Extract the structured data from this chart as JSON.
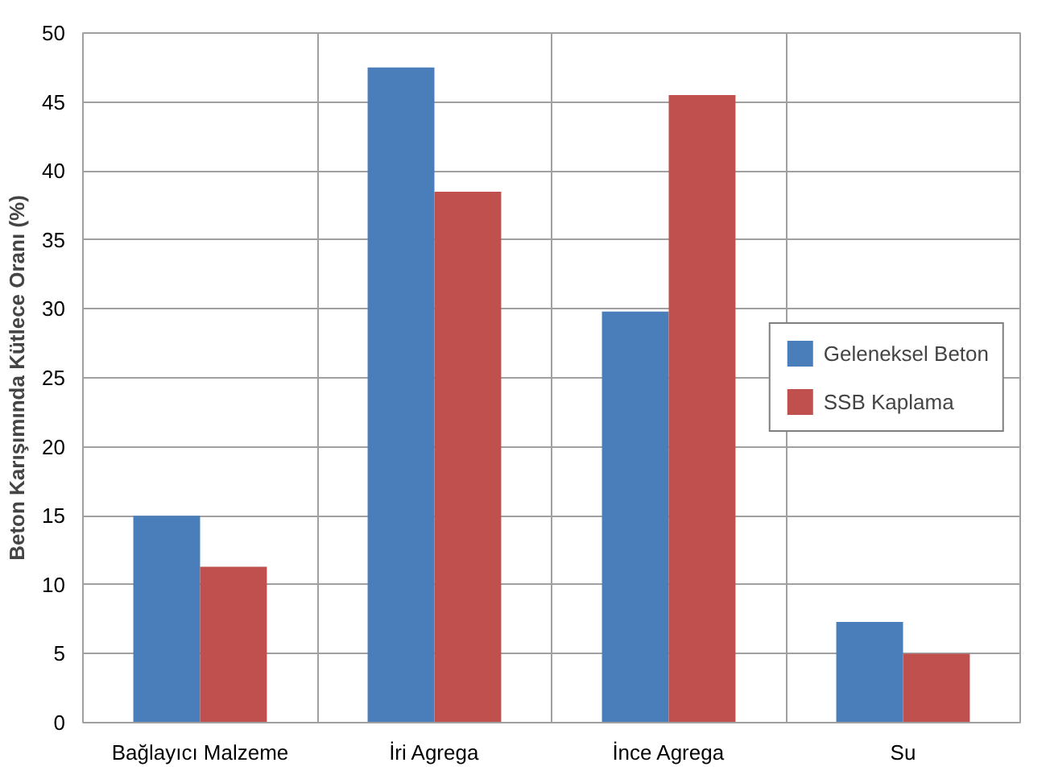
{
  "chart_data": {
    "type": "bar",
    "ylabel": "Beton Karışımında Kütlece Oranı (%)",
    "categories": [
      "Bağlayıcı Malzeme",
      "İri Agrega",
      "İnce Agrega",
      "Su"
    ],
    "series": [
      {
        "name": "Geleneksel Beton",
        "color": "#4a7ebb",
        "values": [
          15,
          47.5,
          29.8,
          7.3
        ]
      },
      {
        "name": "SSB Kaplama",
        "color": "#c0504d",
        "values": [
          11.3,
          38.5,
          45.5,
          5.0
        ]
      }
    ],
    "ylim": [
      0,
      50
    ],
    "yticks": [
      0,
      5,
      10,
      15,
      20,
      25,
      30,
      35,
      40,
      45,
      50
    ],
    "grid": true,
    "legend": "right"
  }
}
